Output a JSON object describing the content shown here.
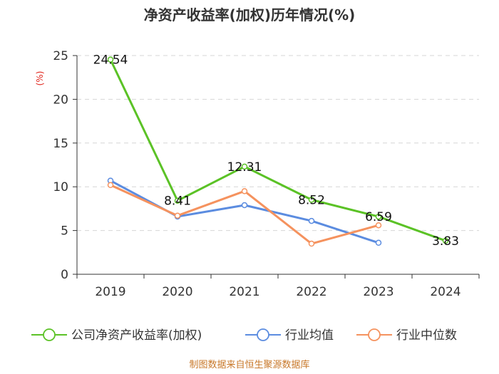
{
  "title": "净资产收益率(加权)历年情况(%)",
  "source": "制图数据来自恒生聚源数据库",
  "chart_data": {
    "type": "line",
    "title": "净资产收益率(加权)历年情况(%)",
    "ylabel": "(%)",
    "xlabel": "",
    "ylim": [
      0,
      25
    ],
    "yticks": [
      0,
      5,
      10,
      15,
      20,
      25
    ],
    "categories": [
      "2019",
      "2020",
      "2021",
      "2022",
      "2023",
      "2024"
    ],
    "grid": true,
    "legend_position": "bottom",
    "series": [
      {
        "name": "公司净资产收益率(加权)",
        "color": "#5bc226",
        "values": [
          24.54,
          8.41,
          12.31,
          8.52,
          6.59,
          3.83
        ],
        "labels": [
          "24.54",
          "8.41",
          "12.31",
          "8.52",
          "6.59",
          "3.83"
        ]
      },
      {
        "name": "行业均值",
        "color": "#5b8ce0",
        "values": [
          10.7,
          6.6,
          7.9,
          6.1,
          3.6,
          null
        ]
      },
      {
        "name": "行业中位数",
        "color": "#f5925e",
        "values": [
          10.2,
          6.7,
          9.5,
          3.5,
          5.6,
          null
        ]
      }
    ]
  }
}
